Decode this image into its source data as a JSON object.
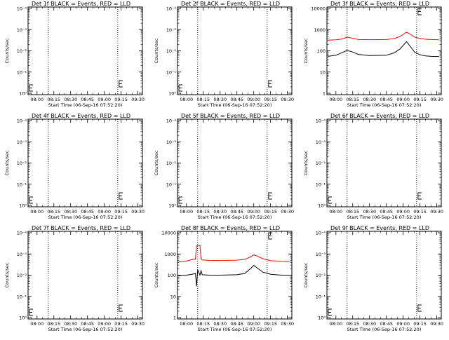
{
  "panels": [
    {
      "title": "Det 1f BLACK = Events, RED = LLD",
      "xlabel": "Start Time (06-Sep-16 07:52:20)",
      "ylabel": "Counts/sec",
      "yscale": "log",
      "yticks": [
        "10⁻⁴",
        "10⁻³",
        "10⁻²",
        "10⁻¹",
        "10⁰"
      ],
      "xticks": [
        "08:00",
        "08:15",
        "08:30",
        "08:45",
        "09:00",
        "09:15",
        "09:30"
      ],
      "has_data": false
    },
    {
      "title": "Det 2f BLACK = Events, RED = LLD",
      "xlabel": "Start Time (06-Sep-16 07:52:20)",
      "ylabel": "Counts/sec",
      "yscale": "log",
      "yticks": [
        "10⁻⁴",
        "10⁻³",
        "10⁻²",
        "10⁻¹",
        "10⁰"
      ],
      "xticks": [
        "08:00",
        "08:15",
        "08:30",
        "08:45",
        "09:00",
        "09:15",
        "09:30"
      ],
      "has_data": false
    },
    {
      "title": "Det 3f BLACK = Events, RED = LLD",
      "xlabel": "Start Time (06-Sep-16 07:52:20)",
      "ylabel": "Counts/sec",
      "yscale": "log",
      "yticks": [
        "10000",
        "1000",
        "100",
        "10",
        "1"
      ],
      "xticks": [
        "08:00",
        "08:15",
        "08:30",
        "08:45",
        "09:00",
        "09:15",
        "09:30"
      ],
      "has_data": true
    },
    {
      "title": "Det 4f BLACK = Events, RED = LLD",
      "xlabel": "Start Time (06-Sep-16 07:52:20)",
      "ylabel": "Counts/sec",
      "yscale": "log",
      "yticks": [
        "10⁻⁴",
        "10⁻³",
        "10⁻²",
        "10⁻¹",
        "10⁰"
      ],
      "xticks": [
        "08:00",
        "08:15",
        "08:30",
        "08:45",
        "09:00",
        "09:15",
        "09:30"
      ],
      "has_data": false
    },
    {
      "title": "Det 5f BLACK = Events, RED = LLD",
      "xlabel": "Start Time (06-Sep-16 07:52:20)",
      "ylabel": "Counts/sec",
      "yscale": "log",
      "yticks": [
        "10⁻⁴",
        "10⁻³",
        "10⁻²",
        "10⁻¹",
        "10⁰"
      ],
      "xticks": [
        "08:00",
        "08:15",
        "08:30",
        "08:45",
        "09:00",
        "09:15",
        "09:30"
      ],
      "has_data": false
    },
    {
      "title": "Det 6f BLACK = Events, RED = LLD",
      "xlabel": "Start Time (06-Sep-16 07:52:20)",
      "ylabel": "Counts/sec",
      "yscale": "log",
      "yticks": [
        "10⁻⁴",
        "10⁻³",
        "10⁻²",
        "10⁻¹",
        "10⁰"
      ],
      "xticks": [
        "08:00",
        "08:15",
        "08:30",
        "08:45",
        "09:00",
        "09:15",
        "09:30"
      ],
      "has_data": false
    },
    {
      "title": "Det 7f BLACK = Events, RED = LLD",
      "xlabel": "Start Time (06-Sep-16 07:52:20)",
      "ylabel": "Counts/sec",
      "yscale": "log",
      "yticks": [
        "10⁻⁴",
        "10⁻³",
        "10⁻²",
        "10⁻¹",
        "10⁰"
      ],
      "xticks": [
        "08:00",
        "08:15",
        "08:30",
        "08:45",
        "09:00",
        "09:15",
        "09:30"
      ],
      "has_data": false
    },
    {
      "title": "Det 8f BLACK = Events, RED = LLD",
      "xlabel": "Start Time (06-Sep-16 07:52:20)",
      "ylabel": "Counts/sec",
      "yscale": "log",
      "yticks": [
        "10000",
        "1000",
        "100",
        "10",
        "1"
      ],
      "xticks": [
        "08:00",
        "08:15",
        "08:30",
        "08:45",
        "09:00",
        "09:15",
        "09:30"
      ],
      "has_data": true
    },
    {
      "title": "Det 9f BLACK = Events, RED = LLD",
      "xlabel": "Start Time (06-Sep-16 07:52:20)",
      "ylabel": "Counts/sec",
      "yscale": "log",
      "yticks": [
        "10⁻⁴",
        "10⁻³",
        "10⁻²",
        "10⁻¹",
        "10⁰"
      ],
      "xticks": [
        "08:00",
        "08:15",
        "08:30",
        "08:45",
        "09:00",
        "09:15",
        "09:30"
      ],
      "has_data": false
    }
  ],
  "chart_data": [
    {
      "type": "line",
      "title": "Det 3f BLACK = Events, RED = LLD",
      "xlabel": "Start Time (06-Sep-16 07:52:20)",
      "ylabel": "Counts/sec",
      "yscale": "log",
      "ylim": [
        1,
        15000
      ],
      "x_tick_labels": [
        "08:00",
        "08:15",
        "08:30",
        "08:45",
        "09:00",
        "09:15",
        "09:30"
      ],
      "vertical_markers": [
        "08:10",
        "09:12"
      ],
      "series": [
        {
          "color": "#ff0000",
          "x": [
            "07:53",
            "08:00",
            "08:05",
            "08:10",
            "08:15",
            "08:20",
            "08:30",
            "08:45",
            "08:52",
            "08:57",
            "09:00",
            "09:03",
            "09:06",
            "09:10",
            "09:15",
            "09:20",
            "09:25",
            "09:30",
            "09:32"
          ],
          "values": [
            320,
            330,
            360,
            440,
            390,
            340,
            335,
            340,
            380,
            470,
            600,
            760,
            620,
            450,
            380,
            350,
            340,
            335,
            330
          ]
        },
        {
          "color": "#000000",
          "x": [
            "07:53",
            "08:00",
            "08:05",
            "08:10",
            "08:15",
            "08:20",
            "08:30",
            "08:45",
            "08:52",
            "08:57",
            "09:00",
            "09:03",
            "09:06",
            "09:10",
            "09:15",
            "09:20",
            "09:25",
            "09:30",
            "09:32"
          ],
          "values": [
            55,
            62,
            80,
            105,
            88,
            68,
            60,
            62,
            80,
            120,
            180,
            270,
            170,
            90,
            65,
            58,
            55,
            54,
            55
          ]
        }
      ]
    },
    {
      "type": "line",
      "title": "Det 8f BLACK = Events, RED = LLD",
      "xlabel": "Start Time (06-Sep-16 07:52:20)",
      "ylabel": "Counts/sec",
      "yscale": "log",
      "ylim": [
        1,
        15000
      ],
      "x_tick_labels": [
        "08:00",
        "08:15",
        "08:30",
        "08:45",
        "09:00",
        "09:15",
        "09:30"
      ],
      "vertical_markers": [
        "08:10",
        "09:12"
      ],
      "series": [
        {
          "color": "#ff0000",
          "x": [
            "07:53",
            "08:00",
            "08:05",
            "08:08",
            "08:09",
            "08:10",
            "08:12",
            "08:13",
            "08:14",
            "08:20",
            "08:30",
            "08:45",
            "08:52",
            "08:57",
            "09:00",
            "09:03",
            "09:08",
            "09:15",
            "09:25",
            "09:32"
          ],
          "values": [
            420,
            460,
            540,
            580,
            2400,
            2500,
            2500,
            600,
            520,
            500,
            490,
            510,
            560,
            720,
            900,
            800,
            600,
            480,
            450,
            440
          ]
        },
        {
          "color": "#000000",
          "x": [
            "07:53",
            "08:00",
            "08:05",
            "08:08",
            "08:09",
            "08:10",
            "08:12",
            "08:13",
            "08:14",
            "08:20",
            "08:30",
            "08:45",
            "08:52",
            "08:57",
            "09:00",
            "09:03",
            "09:08",
            "09:15",
            "09:25",
            "09:32"
          ],
          "values": [
            95,
            100,
            110,
            120,
            30,
            180,
            100,
            160,
            105,
            100,
            100,
            105,
            120,
            200,
            290,
            220,
            140,
            110,
            100,
            100
          ]
        }
      ]
    }
  ]
}
